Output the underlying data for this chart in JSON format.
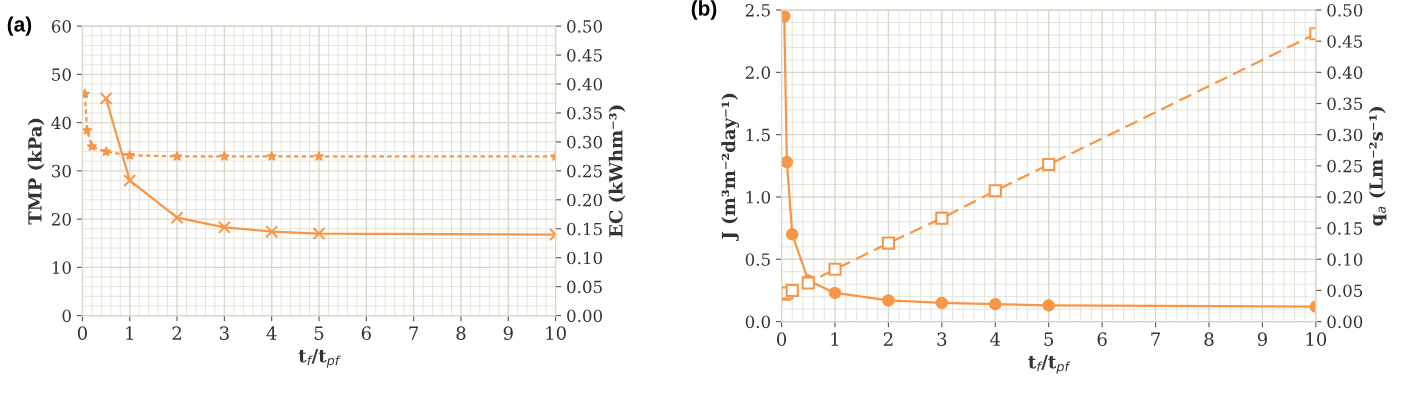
{
  "chart_data": [
    {
      "type": "line",
      "title": "(a)",
      "xlabel": "t$_{f}$/t$_{pf}$",
      "ylabel": "TMP (kPa)",
      "y2label": "EC (kWhm⁻³)",
      "xlim": [
        0,
        10
      ],
      "xticks": [
        0,
        1,
        2,
        3,
        4,
        5,
        6,
        7,
        8,
        9,
        10
      ],
      "ylim": [
        0,
        60
      ],
      "yticks": [
        0,
        10,
        20,
        30,
        40,
        50,
        60
      ],
      "y2lim": [
        0,
        0.5
      ],
      "y2ticks": [
        {
          "value": 0,
          "label": "0.00"
        },
        {
          "value": 0.05,
          "label": "0.05"
        },
        {
          "value": 0.1,
          "label": "0.10"
        },
        {
          "value": 0.15,
          "label": "0.15"
        },
        {
          "value": 0.2,
          "label": "0.20"
        },
        {
          "value": 0.25,
          "label": "0.25"
        },
        {
          "value": 0.3,
          "label": "0.30"
        },
        {
          "value": 0.35,
          "label": "0.35"
        },
        {
          "value": 0.4,
          "label": "0.40"
        },
        {
          "value": 0.45,
          "label": "0.45"
        },
        {
          "value": 0.5,
          "label": "0.50"
        }
      ],
      "grid": true,
      "series": [
        {
          "color": "#f79646",
          "marker": "cross",
          "line_style": "solid",
          "x": [
            0.5,
            1,
            2,
            3,
            4,
            5,
            10
          ],
          "values": [
            45,
            28,
            20.3,
            18.3,
            17.4,
            17,
            16.8
          ]
        },
        {
          "color": "#f79646",
          "marker": "star",
          "line_style": "dotted",
          "axis": "y2",
          "x": [
            0.05,
            0.1,
            0.2,
            0.5,
            1,
            2,
            3,
            4,
            5,
            10
          ],
          "values": [
            0.383,
            0.32,
            0.292,
            0.283,
            0.277,
            0.275,
            0.275,
            0.275,
            0.275,
            0.275
          ]
        }
      ]
    },
    {
      "type": "line",
      "title": "(b)",
      "xlabel": "t$_{f}$/t$_{pf}$",
      "ylabel": "J (m³m⁻²day⁻¹)",
      "y2label": "q$_{a}$ (Lm⁻²s⁻¹)",
      "xlim": [
        0,
        10
      ],
      "xticks": [
        0,
        1,
        2,
        3,
        4,
        5,
        6,
        7,
        8,
        9,
        10
      ],
      "ylim": [
        0,
        2.5
      ],
      "yticks": [
        {
          "value": 0,
          "label": "0.0"
        },
        {
          "value": 0.5,
          "label": "0.5"
        },
        {
          "value": 1,
          "label": "1.0"
        },
        {
          "value": 1.5,
          "label": "1.5"
        },
        {
          "value": 2,
          "label": "2.0"
        },
        {
          "value": 2.5,
          "label": "2.5"
        }
      ],
      "y2lim": [
        0,
        0.5
      ],
      "y2ticks": [
        {
          "value": 0,
          "label": "0.00"
        },
        {
          "value": 0.05,
          "label": "0.05"
        },
        {
          "value": 0.1,
          "label": "0.10"
        },
        {
          "value": 0.15,
          "label": "0.15"
        },
        {
          "value": 0.2,
          "label": "0.20"
        },
        {
          "value": 0.25,
          "label": "0.25"
        },
        {
          "value": 0.3,
          "label": "0.30"
        },
        {
          "value": 0.35,
          "label": "0.35"
        },
        {
          "value": 0.4,
          "label": "0.40"
        },
        {
          "value": 0.45,
          "label": "0.45"
        },
        {
          "value": 0.5,
          "label": "0.50"
        }
      ],
      "grid": true,
      "series": [
        {
          "color": "#f79646",
          "marker": "circle",
          "line_style": "solid",
          "x": [
            0.05,
            0.1,
            0.2,
            0.5,
            1,
            2,
            3,
            4,
            5,
            10
          ],
          "values": [
            2.45,
            1.28,
            0.7,
            0.33,
            0.23,
            0.17,
            0.15,
            0.14,
            0.13,
            0.12
          ]
        },
        {
          "color": "#f79646",
          "marker": "square",
          "line_style": "dashed",
          "axis": "y2",
          "x": [
            0.05,
            0.1,
            0.2,
            0.5,
            1,
            2,
            3,
            4,
            5,
            10
          ],
          "values": [
            0.044,
            0.046,
            0.05,
            0.062,
            0.084,
            0.126,
            0.166,
            0.21,
            0.252,
            0.462
          ]
        }
      ]
    }
  ]
}
